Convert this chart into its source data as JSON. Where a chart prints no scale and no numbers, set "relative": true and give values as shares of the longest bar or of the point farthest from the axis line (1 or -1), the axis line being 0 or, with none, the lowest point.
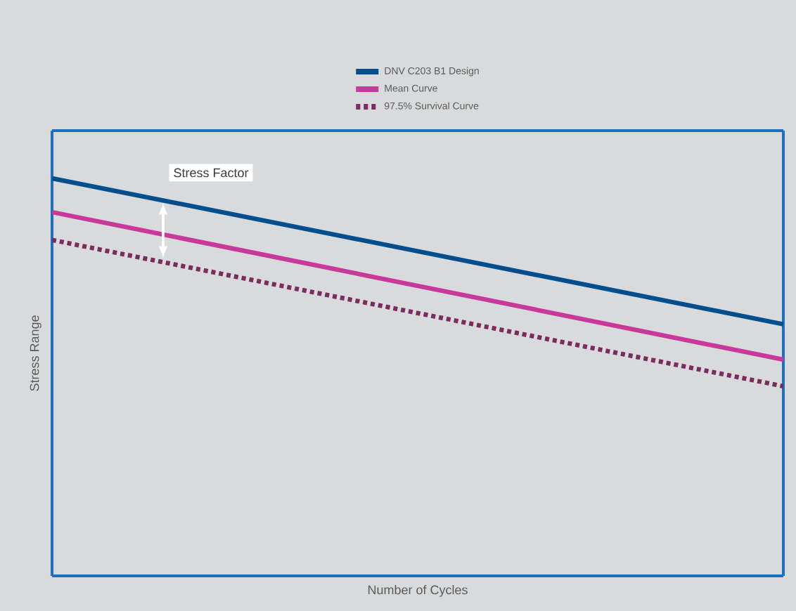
{
  "chart_data": {
    "type": "line",
    "relative": true,
    "xlabel": "Number of Cycles",
    "ylabel": "Stress Range",
    "categories": [
      null,
      null
    ],
    "series": [
      {
        "name": "DNV C203 B1 Design",
        "color": "#004f8c",
        "values": [
          1,
          0.633
        ],
        "line_style": "solid"
      },
      {
        "name": "Mean Curve",
        "color": "#c8399a",
        "values": [
          0.915,
          0.544
        ],
        "line_style": "solid"
      },
      {
        "name": "97.5% Survival Curve",
        "color": "#7a2c5e",
        "values": [
          0.845,
          0.477
        ],
        "line_style": "dashed"
      }
    ],
    "annotations": [
      "Stress Factor"
    ],
    "legend": "top",
    "marker": "none"
  }
}
